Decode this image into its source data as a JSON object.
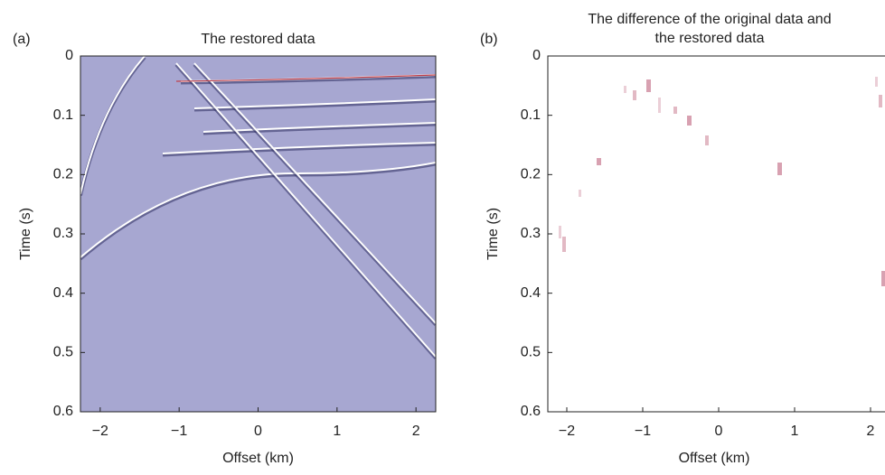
{
  "chart_data": [
    {
      "type": "image",
      "panel_label": "(a)",
      "title": [
        "The restored data"
      ],
      "xlabel": "Offset (km)",
      "ylabel": "Time (s)",
      "background": "#a7a7d1",
      "xlim": [
        -2.25,
        2.25
      ],
      "ylim": [
        0.6,
        0
      ],
      "xticks": [
        {
          "value": -2,
          "label": "−2"
        },
        {
          "value": -1,
          "label": "−1"
        },
        0,
        1,
        2
      ],
      "yticks": [
        0,
        0.1,
        0.2,
        0.3,
        0.4,
        0.5,
        0.6
      ]
    },
    {
      "type": "image",
      "panel_label": "(b)",
      "title": [
        "The difference of the original data and",
        "the restored data"
      ],
      "xlabel": "Offset (km)",
      "ylabel": "Time (s)",
      "background": "#ffffff",
      "xlim": [
        -2.25,
        2.25
      ],
      "ylim": [
        0.6,
        0
      ],
      "xticks": [
        {
          "value": -2,
          "label": "−2"
        },
        {
          "value": -1,
          "label": "−1"
        },
        0,
        1,
        2
      ],
      "yticks": [
        0,
        0.1,
        0.2,
        0.3,
        0.4,
        0.5,
        0.6
      ]
    }
  ]
}
